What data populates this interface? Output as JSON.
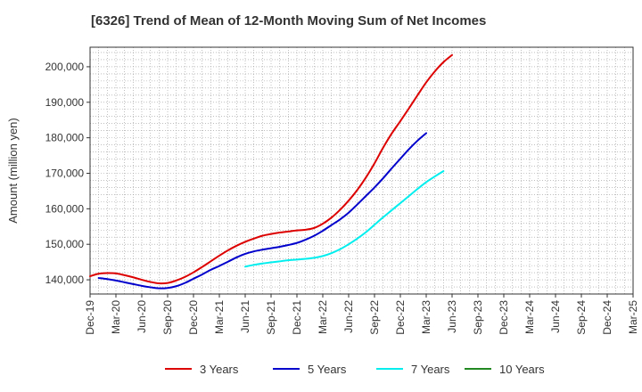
{
  "title": "[6326]  Trend of Mean of 12-Month Moving Sum of Net Incomes",
  "chart_data": {
    "type": "line",
    "title": "[6326]  Trend of Mean of 12-Month Moving Sum of Net Incomes",
    "ylabel": "Amount (million yen)",
    "xlabel": "",
    "ylim": [
      136000,
      205500
    ],
    "yticks": [
      140000,
      150000,
      160000,
      170000,
      180000,
      190000,
      200000
    ],
    "ytick_labels": [
      "140,000",
      "150,000",
      "160,000",
      "170,000",
      "180,000",
      "190,000",
      "200,000"
    ],
    "xtick_labels": [
      "Dec-19",
      "Mar-20",
      "Jun-20",
      "Sep-20",
      "Dec-20",
      "Mar-21",
      "Jun-21",
      "Sep-21",
      "Dec-21",
      "Mar-22",
      "Jun-22",
      "Sep-22",
      "Dec-22",
      "Mar-23",
      "Jun-23",
      "Sep-23",
      "Dec-23",
      "Mar-24",
      "Jun-24",
      "Sep-24",
      "Dec-24",
      "Mar-25"
    ],
    "grid": true,
    "legend_position": "bottom",
    "series": [
      {
        "name": "3 Years",
        "color": "#dd0000",
        "values": [
          141000,
          141700,
          141900,
          141800,
          141300,
          140700,
          140000,
          139400,
          139000,
          139100,
          139800,
          140800,
          142100,
          143600,
          145200,
          146800,
          148300,
          149600,
          150700,
          151600,
          152400,
          152900,
          153300,
          153600,
          153900,
          154100,
          154600,
          155800,
          157500,
          159700,
          162300,
          165300,
          168800,
          172800,
          177200,
          181200,
          184700,
          188300,
          192000,
          195600,
          198700,
          201300,
          203300
        ]
      },
      {
        "name": "5 Years",
        "color": "#0000cc",
        "values": [
          null,
          140500,
          140200,
          139800,
          139300,
          138800,
          138300,
          137900,
          137600,
          137700,
          138200,
          139100,
          140300,
          141500,
          142800,
          143900,
          145100,
          146300,
          147300,
          148000,
          148500,
          148900,
          149300,
          149800,
          150400,
          151300,
          152400,
          153800,
          155400,
          157000,
          158900,
          161200,
          163600,
          166000,
          168600,
          171400,
          174100,
          176800,
          179200,
          181300
        ]
      },
      {
        "name": "7 Years",
        "color": "#00eeee",
        "values": [
          null,
          null,
          null,
          null,
          null,
          null,
          null,
          null,
          null,
          null,
          null,
          null,
          null,
          null,
          null,
          null,
          null,
          null,
          143700,
          144200,
          144600,
          144900,
          145200,
          145500,
          145700,
          145900,
          146200,
          146700,
          147500,
          148600,
          150000,
          151600,
          153400,
          155500,
          157600,
          159600,
          161600,
          163600,
          165600,
          167500,
          169100,
          170600
        ]
      },
      {
        "name": "10 Years",
        "color": "#228822",
        "values": []
      }
    ]
  }
}
